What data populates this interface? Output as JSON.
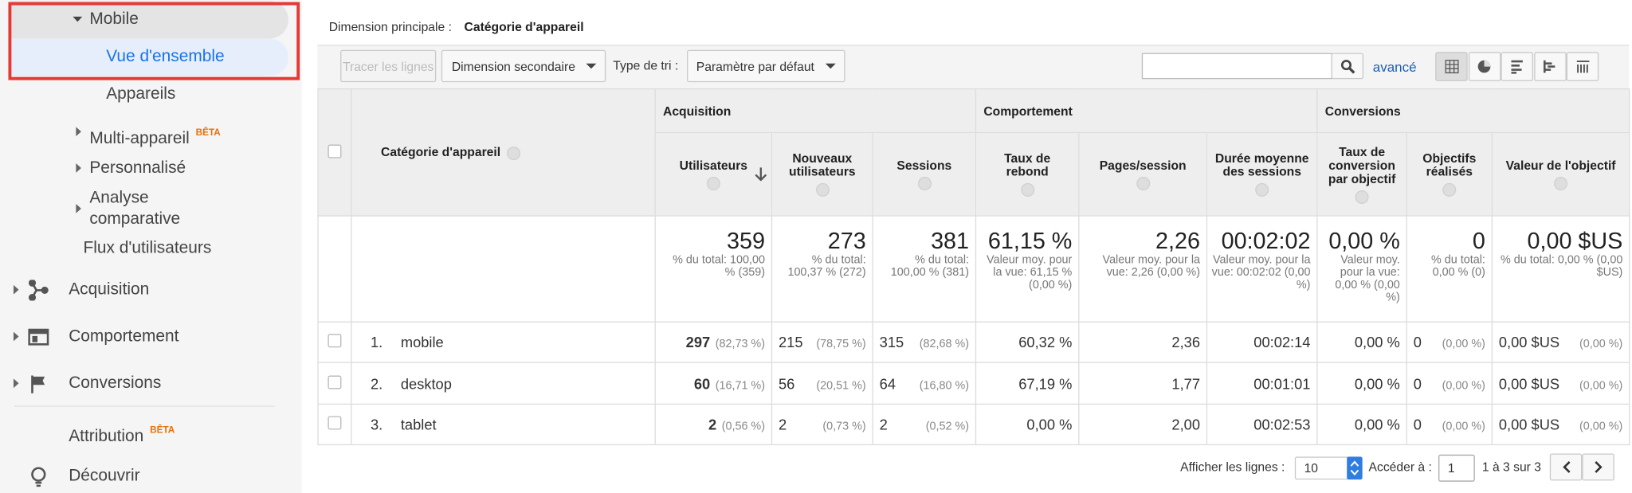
{
  "sidebar": {
    "items": [
      {
        "label": "Mobile"
      },
      {
        "label": "Vue d'ensemble"
      },
      {
        "label": "Appareils"
      },
      {
        "label": "Multi-appareil",
        "badge": "BÊTA"
      },
      {
        "label": "Personnalisé"
      },
      {
        "label": "Analyse comparative"
      },
      {
        "label": "Flux d'utilisateurs"
      },
      {
        "label": "Acquisition"
      },
      {
        "label": "Comportement"
      },
      {
        "label": "Conversions"
      },
      {
        "label": "Attribution",
        "badge": "BÊTA"
      },
      {
        "label": "Découvrir"
      }
    ]
  },
  "toolbar": {
    "primary_dimension_label": "Dimension principale :",
    "primary_dimension_value": "Catégorie d'appareil",
    "plot_rows": "Tracer les lignes",
    "secondary_dimension": "Dimension secondaire",
    "sort_label": "Type de tri :",
    "sort_value": "Paramètre par défaut",
    "advanced": "avancé"
  },
  "table": {
    "dimension_header": "Catégorie d'appareil",
    "groups": [
      "Acquisition",
      "Comportement",
      "Conversions"
    ],
    "columns": [
      "Utilisateurs",
      "Nouveaux utilisateurs",
      "Sessions",
      "Taux de rebond",
      "Pages/session",
      "Durée moyenne des sessions",
      "Taux de conversion par objectif",
      "Objectifs réalisés",
      "Valeur de l'objectif"
    ],
    "totals": [
      {
        "value": "359",
        "note": "% du total: 100,00 % (359)"
      },
      {
        "value": "273",
        "note": "% du total: 100,37 % (272)"
      },
      {
        "value": "381",
        "note": "% du total: 100,00 % (381)"
      },
      {
        "value": "61,15 %",
        "note": "Valeur moy. pour la vue: 61,15 % (0,00 %)"
      },
      {
        "value": "2,26",
        "note": "Valeur moy. pour la vue: 2,26 (0,00 %)"
      },
      {
        "value": "00:02:02",
        "note": "Valeur moy. pour la vue: 00:02:02 (0,00 %)"
      },
      {
        "value": "0,00 %",
        "note": "Valeur moy. pour la vue: 0,00 % (0,00 %)"
      },
      {
        "value": "0",
        "note": "% du total: 0,00 % (0)"
      },
      {
        "value": "0,00 $US",
        "note": "% du total: 0,00 % (0,00 $US)"
      }
    ],
    "rows": [
      {
        "index": "1.",
        "name": "mobile",
        "cells": [
          {
            "value": "297",
            "pct": "(82,73 %)"
          },
          {
            "value": "215",
            "pct": "(78,75 %)"
          },
          {
            "value": "315",
            "pct": "(82,68 %)"
          },
          {
            "value": "60,32 %"
          },
          {
            "value": "2,36"
          },
          {
            "value": "00:02:14"
          },
          {
            "value": "0,00 %"
          },
          {
            "value": "0",
            "pct": "(0,00 %)"
          },
          {
            "value": "0,00 $US",
            "pct": "(0,00 %)"
          }
        ]
      },
      {
        "index": "2.",
        "name": "desktop",
        "cells": [
          {
            "value": "60",
            "pct": "(16,71 %)"
          },
          {
            "value": "56",
            "pct": "(20,51 %)"
          },
          {
            "value": "64",
            "pct": "(16,80 %)"
          },
          {
            "value": "67,19 %"
          },
          {
            "value": "1,77"
          },
          {
            "value": "00:01:01"
          },
          {
            "value": "0,00 %"
          },
          {
            "value": "0",
            "pct": "(0,00 %)"
          },
          {
            "value": "0,00 $US",
            "pct": "(0,00 %)"
          }
        ]
      },
      {
        "index": "3.",
        "name": "tablet",
        "cells": [
          {
            "value": "2",
            "pct": "(0,56 %)"
          },
          {
            "value": "2",
            "pct": "(0,73 %)"
          },
          {
            "value": "2",
            "pct": "(0,52 %)"
          },
          {
            "value": "0,00 %"
          },
          {
            "value": "2,00"
          },
          {
            "value": "00:02:53"
          },
          {
            "value": "0,00 %"
          },
          {
            "value": "0",
            "pct": "(0,00 %)"
          },
          {
            "value": "0,00 $US",
            "pct": "(0,00 %)"
          }
        ]
      }
    ]
  },
  "footer": {
    "show_rows_label": "Afficher les lignes :",
    "show_rows_value": "10",
    "goto_label": "Accéder à :",
    "goto_value": "1",
    "range": "1 à 3 sur 3"
  }
}
